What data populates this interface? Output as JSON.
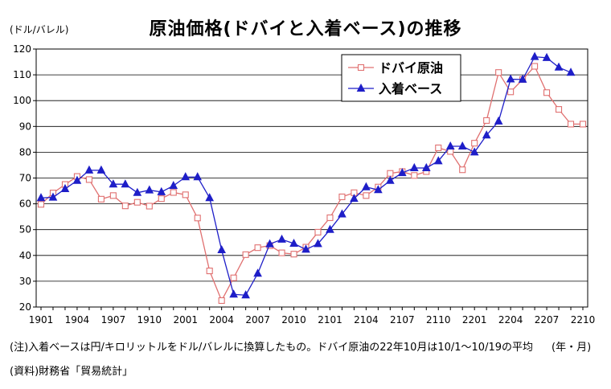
{
  "chart_data": {
    "type": "line",
    "title": "原油価格(ドバイと入着ベース)の推移",
    "ylabel": "(ドル/バレル)",
    "xlabel": "(年・月)",
    "ylim": [
      20,
      120
    ],
    "yticks": [
      20,
      30,
      40,
      50,
      60,
      70,
      80,
      90,
      100,
      110,
      120
    ],
    "x_tick_labels": [
      "1901",
      "1904",
      "1907",
      "1910",
      "2001",
      "2004",
      "2007",
      "2010",
      "2101",
      "2104",
      "2107",
      "2110",
      "2201",
      "2204",
      "2207",
      "2210"
    ],
    "grid": true,
    "legend_position": "top-right",
    "x": [
      "1901",
      "1902",
      "1903",
      "1904",
      "1905",
      "1906",
      "1907",
      "1908",
      "1909",
      "1910",
      "1911",
      "1912",
      "2001",
      "2002",
      "2003",
      "2004",
      "2005",
      "2006",
      "2007",
      "2008",
      "2009",
      "2010",
      "2011",
      "2012",
      "2101",
      "2102",
      "2103",
      "2104",
      "2105",
      "2106",
      "2107",
      "2108",
      "2109",
      "2110",
      "2111",
      "2112",
      "2201",
      "2202",
      "2203",
      "2204",
      "2205",
      "2206",
      "2207",
      "2208",
      "2209",
      "2210"
    ],
    "series": [
      {
        "name": "ドバイ原油",
        "color": "#e07070",
        "marker": "square-open",
        "values": [
          59.8,
          64.2,
          67.5,
          70.6,
          69.4,
          61.8,
          63.2,
          59.2,
          60.6,
          59.1,
          62.0,
          64.4,
          63.5,
          54.5,
          34.0,
          22.5,
          31.3,
          40.3,
          43.0,
          43.8,
          41.0,
          40.5,
          43.2,
          49.0,
          54.6,
          62.7,
          64.3,
          63.2,
          66.5,
          71.8,
          72.5,
          71.0,
          72.5,
          81.7,
          80.3,
          73.2,
          83.5,
          92.3,
          110.9,
          103.4,
          108.2,
          113.3,
          103.1,
          96.6,
          90.9,
          90.9
        ]
      },
      {
        "name": "入着ベース",
        "color": "#1e1ec8",
        "marker": "triangle",
        "values": [
          62.3,
          62.5,
          65.8,
          69.0,
          73.0,
          73.0,
          67.6,
          67.6,
          64.3,
          65.3,
          64.6,
          67.0,
          70.4,
          70.4,
          62.3,
          42.1,
          24.9,
          24.6,
          33.0,
          44.4,
          46.2,
          44.6,
          42.3,
          44.5,
          50.0,
          56.0,
          62.0,
          66.5,
          65.4,
          69.0,
          72.0,
          73.9,
          73.9,
          76.6,
          82.3,
          82.3,
          80.0,
          86.6,
          92.0,
          108.3,
          108.2,
          117.0,
          116.6,
          112.9,
          110.9,
          null
        ]
      }
    ]
  },
  "note": "(注)入着ベースは円/キロリットルをドル/バレルに換算したもの。ドバイ原油の22年10月は10/1～10/19の平均",
  "source": "(資料)財務省「貿易統計」"
}
